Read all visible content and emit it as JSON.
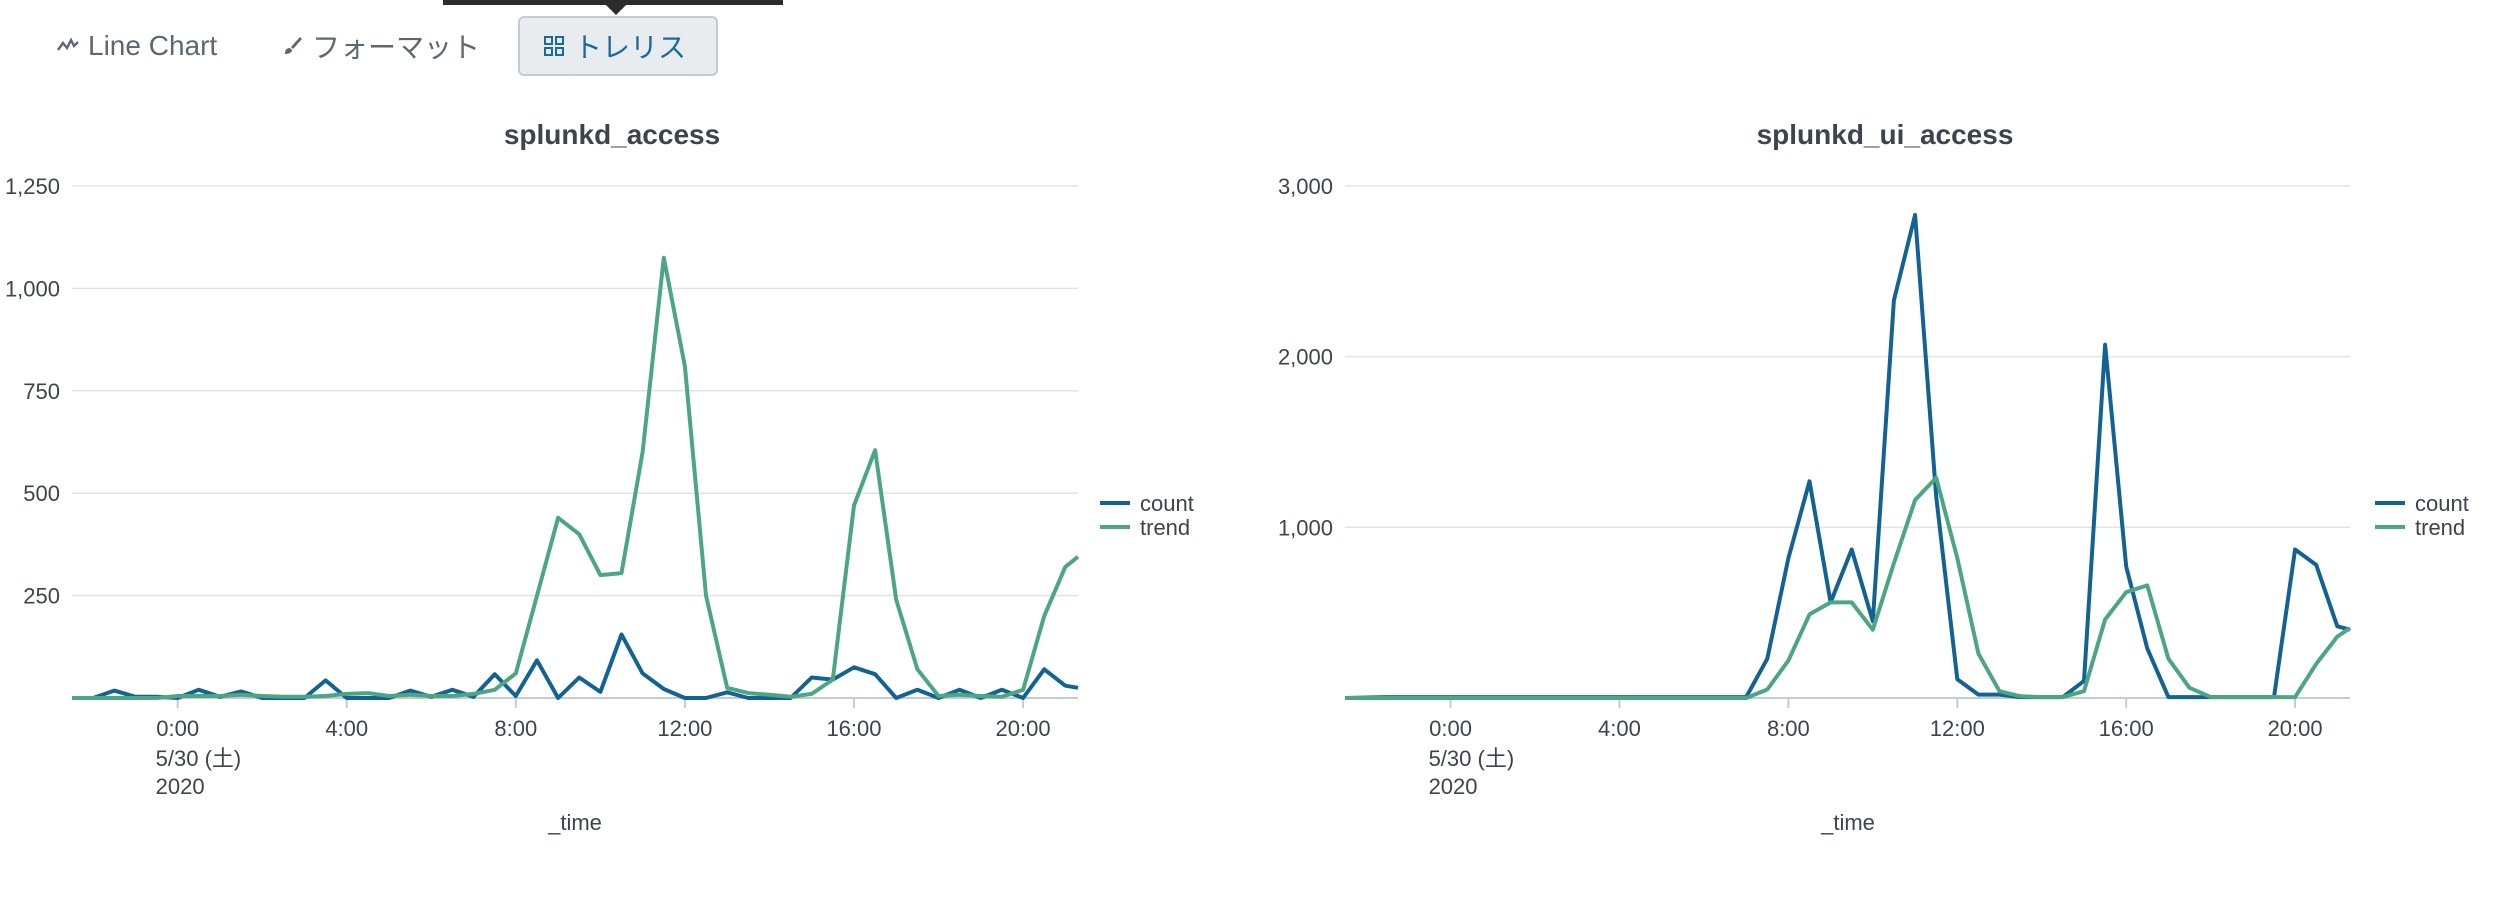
{
  "toolbar": {
    "line_chart_label": "Line Chart",
    "format_label": "フォーマット",
    "trellis_label": "トレリス"
  },
  "colors": {
    "count": "#126393",
    "trend": "#4ca683",
    "grid": "#e1e4e6",
    "axis": "#c3cbd4"
  },
  "chart_data": [
    {
      "type": "line",
      "title": "splunkd_access",
      "xlabel": "_time",
      "ylabel": "",
      "x_range_hours": [
        -2.5,
        21.3
      ],
      "ylim": [
        0,
        1250
      ],
      "y_ticks": [
        250,
        500,
        750,
        1000,
        1250
      ],
      "y_tick_labels": [
        "250",
        "500",
        "750",
        "1,000",
        "1,250"
      ],
      "x_ticks": [
        0,
        4,
        8,
        12,
        16,
        20
      ],
      "x_tick_labels": [
        "0:00",
        "4:00",
        "8:00",
        "12:00",
        "16:00",
        "20:00"
      ],
      "x_date_label": "5/30 (土)",
      "x_year_label": "2020",
      "legend": [
        "count",
        "trend"
      ],
      "series": [
        {
          "name": "count",
          "points": [
            [
              -2.5,
              0
            ],
            [
              -2,
              0
            ],
            [
              -1.5,
              18
            ],
            [
              -1,
              3
            ],
            [
              -0.5,
              3
            ],
            [
              0,
              0
            ],
            [
              0.5,
              20
            ],
            [
              1,
              3
            ],
            [
              1.5,
              16
            ],
            [
              2,
              0
            ],
            [
              2.5,
              0
            ],
            [
              3,
              0
            ],
            [
              3.5,
              43
            ],
            [
              4,
              0
            ],
            [
              4.5,
              0
            ],
            [
              5,
              0
            ],
            [
              5.5,
              18
            ],
            [
              6,
              3
            ],
            [
              6.5,
              20
            ],
            [
              7,
              3
            ],
            [
              7.5,
              58
            ],
            [
              8,
              5
            ],
            [
              8.5,
              92
            ],
            [
              9,
              0
            ],
            [
              9.5,
              50
            ],
            [
              10,
              15
            ],
            [
              10.5,
              155
            ],
            [
              11,
              60
            ],
            [
              11.5,
              22
            ],
            [
              12,
              0
            ],
            [
              12.5,
              0
            ],
            [
              13,
              14
            ],
            [
              13.5,
              0
            ],
            [
              14,
              0
            ],
            [
              14.5,
              0
            ],
            [
              15,
              50
            ],
            [
              15.5,
              45
            ],
            [
              16,
              75
            ],
            [
              16.5,
              58
            ],
            [
              17,
              0
            ],
            [
              17.5,
              20
            ],
            [
              18,
              0
            ],
            [
              18.5,
              20
            ],
            [
              19,
              0
            ],
            [
              19.5,
              20
            ],
            [
              20,
              0
            ],
            [
              20.5,
              70
            ],
            [
              21,
              30
            ],
            [
              21.3,
              25
            ]
          ]
        },
        {
          "name": "trend",
          "points": [
            [
              -2.5,
              0
            ],
            [
              -2,
              0
            ],
            [
              -1.5,
              0
            ],
            [
              -1,
              0
            ],
            [
              -0.5,
              0
            ],
            [
              0,
              5
            ],
            [
              0.5,
              5
            ],
            [
              1,
              5
            ],
            [
              1.5,
              8
            ],
            [
              2,
              5
            ],
            [
              2.5,
              3
            ],
            [
              3,
              3
            ],
            [
              3.5,
              5
            ],
            [
              4,
              10
            ],
            [
              4.5,
              12
            ],
            [
              5,
              5
            ],
            [
              5.5,
              8
            ],
            [
              6,
              5
            ],
            [
              6.5,
              5
            ],
            [
              7,
              10
            ],
            [
              7.5,
              20
            ],
            [
              8,
              60
            ],
            [
              8.5,
              250
            ],
            [
              9,
              440
            ],
            [
              9.5,
              400
            ],
            [
              10,
              300
            ],
            [
              10.5,
              305
            ],
            [
              11,
              600
            ],
            [
              11.5,
              1075
            ],
            [
              12,
              810
            ],
            [
              12.5,
              250
            ],
            [
              13,
              25
            ],
            [
              13.5,
              12
            ],
            [
              14,
              8
            ],
            [
              14.5,
              3
            ],
            [
              15,
              10
            ],
            [
              15.5,
              45
            ],
            [
              16,
              470
            ],
            [
              16.5,
              605
            ],
            [
              17,
              240
            ],
            [
              17.5,
              70
            ],
            [
              18,
              5
            ],
            [
              18.5,
              8
            ],
            [
              19,
              5
            ],
            [
              19.5,
              3
            ],
            [
              20,
              20
            ],
            [
              20.5,
              200
            ],
            [
              21,
              320
            ],
            [
              21.3,
              345
            ]
          ]
        }
      ]
    },
    {
      "type": "line",
      "title": "splunkd_ui_access",
      "xlabel": "_time",
      "ylabel": "",
      "x_range_hours": [
        -2.5,
        21.3
      ],
      "ylim": [
        0,
        3000
      ],
      "y_ticks": [
        1000,
        2000,
        3000
      ],
      "y_tick_labels": [
        "1,000",
        "2,000",
        "3,000"
      ],
      "x_ticks": [
        0,
        4,
        8,
        12,
        16,
        20
      ],
      "x_tick_labels": [
        "0:00",
        "4:00",
        "8:00",
        "12:00",
        "16:00",
        "20:00"
      ],
      "x_date_label": "5/30 (土)",
      "x_year_label": "2020",
      "legend": [
        "count",
        "trend"
      ],
      "series": [
        {
          "name": "count",
          "points": [
            [
              -2.5,
              0
            ],
            [
              -1.5,
              5
            ],
            [
              -0.5,
              5
            ],
            [
              0.5,
              5
            ],
            [
              1.5,
              5
            ],
            [
              2.5,
              5
            ],
            [
              3.5,
              5
            ],
            [
              4.5,
              5
            ],
            [
              5.5,
              5
            ],
            [
              6.5,
              5
            ],
            [
              7,
              5
            ],
            [
              7.5,
              230
            ],
            [
              8,
              820
            ],
            [
              8.5,
              1270
            ],
            [
              9,
              560
            ],
            [
              9.5,
              870
            ],
            [
              10,
              450
            ],
            [
              10.5,
              2330
            ],
            [
              11,
              2830
            ],
            [
              11.5,
              1180
            ],
            [
              12,
              110
            ],
            [
              12.5,
              20
            ],
            [
              13,
              20
            ],
            [
              13.5,
              5
            ],
            [
              14,
              5
            ],
            [
              14.5,
              5
            ],
            [
              15,
              100
            ],
            [
              15.5,
              2070
            ],
            [
              16,
              770
            ],
            [
              16.5,
              290
            ],
            [
              17,
              5
            ],
            [
              17.5,
              5
            ],
            [
              18,
              5
            ],
            [
              18.5,
              5
            ],
            [
              19,
              5
            ],
            [
              19.5,
              5
            ],
            [
              20,
              870
            ],
            [
              20.5,
              780
            ],
            [
              21,
              420
            ],
            [
              21.3,
              400
            ]
          ]
        },
        {
          "name": "trend",
          "points": [
            [
              -2.5,
              0
            ],
            [
              -1.5,
              0
            ],
            [
              -0.5,
              0
            ],
            [
              0.5,
              0
            ],
            [
              1.5,
              0
            ],
            [
              2.5,
              0
            ],
            [
              3.5,
              0
            ],
            [
              4.5,
              0
            ],
            [
              5.5,
              0
            ],
            [
              6.5,
              0
            ],
            [
              7,
              0
            ],
            [
              7.5,
              50
            ],
            [
              8,
              220
            ],
            [
              8.5,
              490
            ],
            [
              9,
              560
            ],
            [
              9.5,
              560
            ],
            [
              10,
              400
            ],
            [
              10.5,
              790
            ],
            [
              11,
              1160
            ],
            [
              11.5,
              1290
            ],
            [
              12,
              820
            ],
            [
              12.5,
              260
            ],
            [
              13,
              40
            ],
            [
              13.5,
              10
            ],
            [
              14,
              5
            ],
            [
              14.5,
              5
            ],
            [
              15,
              40
            ],
            [
              15.5,
              460
            ],
            [
              16,
              620
            ],
            [
              16.5,
              660
            ],
            [
              17,
              230
            ],
            [
              17.5,
              60
            ],
            [
              18,
              5
            ],
            [
              18.5,
              5
            ],
            [
              19,
              5
            ],
            [
              19.5,
              5
            ],
            [
              20,
              5
            ],
            [
              20.5,
              200
            ],
            [
              21,
              360
            ],
            [
              21.3,
              410
            ]
          ]
        }
      ]
    }
  ]
}
